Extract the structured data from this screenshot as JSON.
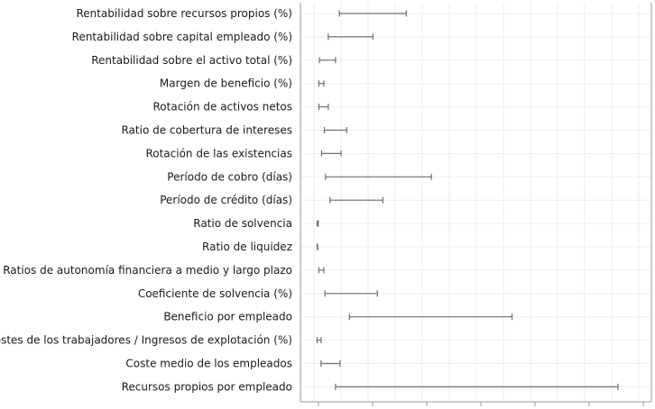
{
  "chart_data": {
    "type": "range",
    "title": "",
    "xlabel": "",
    "ylabel": "",
    "grid": true,
    "x_tick_labels_shown": false,
    "xlim": [
      -0.03,
      0.6
    ],
    "series_color": "#6f6f6f",
    "categories": [
      "Rentabilidad sobre recursos propios (%)",
      "Rentabilidad sobre capital empleado (%)",
      "Rentabilidad sobre el activo total (%)",
      "Margen de beneficio (%)",
      "Rotación de activos netos",
      "Ratio de cobertura de intereses",
      "Rotación de las existencias",
      "Período de cobro (días)",
      "Período de crédito (días)",
      "Ratio de solvencia",
      "Ratio de liquidez",
      "Ratios de autonomía financiera a medio y largo plazo",
      "Coeficiente de solvencia (%)",
      "Beneficio por empleado",
      "Costes de los trabajadores / Ingresos de explotación (%)",
      "Coste medio de los empleados",
      "Recursos propios por empleado"
    ],
    "ranges": [
      [
        0.04,
        0.16
      ],
      [
        0.02,
        0.1
      ],
      [
        0.004,
        0.033
      ],
      [
        0.003,
        0.012
      ],
      [
        0.003,
        0.02
      ],
      [
        0.013,
        0.053
      ],
      [
        0.008,
        0.043
      ],
      [
        0.015,
        0.205
      ],
      [
        0.023,
        0.118
      ],
      [
        0.0,
        0.002
      ],
      [
        0.0,
        0.001
      ],
      [
        0.003,
        0.012
      ],
      [
        0.014,
        0.108
      ],
      [
        0.058,
        0.35
      ],
      [
        0.0,
        0.007
      ],
      [
        0.007,
        0.041
      ],
      [
        0.033,
        0.54
      ]
    ]
  }
}
